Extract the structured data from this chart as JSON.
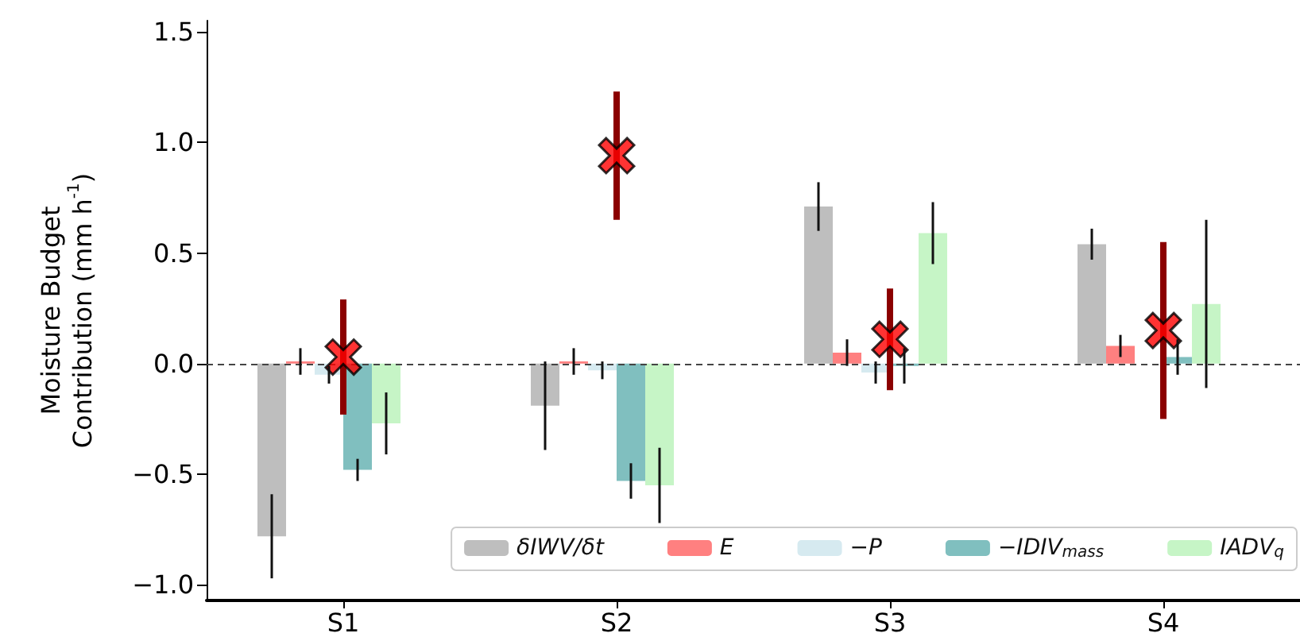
{
  "chart_data": {
    "type": "bar",
    "ylabel": "Moisture Budget\nContribution (mm h$^{-1}$)",
    "categories": [
      "S1",
      "S2",
      "S3",
      "S4"
    ],
    "ylim": [
      -1.07,
      1.55
    ],
    "yticks": [
      {
        "value": -1,
        "label": "−1.0"
      },
      {
        "value": -0.5,
        "label": "−0.5"
      },
      {
        "value": 0,
        "label": "0.0"
      },
      {
        "value": 0.5,
        "label": "0.5"
      },
      {
        "value": 1,
        "label": "1.0"
      },
      {
        "value": 1.5,
        "label": "1.5"
      }
    ],
    "series": [
      {
        "name": "δIWV/δt",
        "color": "#bebebe",
        "values": [
          -0.78,
          -0.19,
          0.71,
          0.54
        ],
        "errors": [
          0.19,
          0.2,
          0.11,
          0.07
        ]
      },
      {
        "name": "E",
        "color": "#ff8080",
        "values": [
          0.01,
          0.01,
          0.05,
          0.08
        ],
        "errors": [
          0.06,
          0.06,
          0.06,
          0.05
        ]
      },
      {
        "name": "−P",
        "color": "#d6eaf0",
        "values": [
          -0.05,
          -0.03,
          -0.04,
          0
        ],
        "errors": [
          0.04,
          0.04,
          0.05,
          null
        ]
      },
      {
        "name": "−IDIV$_{mass}$",
        "color": "#80bfbf",
        "values": [
          -0.48,
          -0.53,
          -0.01,
          0.03
        ],
        "errors": [
          0.05,
          0.08,
          0.08,
          0.08
        ]
      },
      {
        "name": "IADV$_{q}$",
        "color": "#c6f5c6",
        "values": [
          -0.27,
          -0.55,
          0.59,
          0.27
        ],
        "errors": [
          0.14,
          0.17,
          0.14,
          0.38
        ]
      },
      {
        "type": "scatter",
        "marker": "cross",
        "color": "#ff0000",
        "x": [
          "S1",
          "S2",
          "S3",
          "S4"
        ],
        "values": [
          0.03,
          0.94,
          0.11,
          0.15
        ],
        "errors": [
          0.26,
          0.29,
          0.23,
          0.4
        ]
      }
    ],
    "ref_lines": [
      {
        "axis": "y",
        "value": 0,
        "color": "#444444",
        "line_style": "dashed"
      }
    ],
    "legend": "bottom right",
    "grid": false
  }
}
